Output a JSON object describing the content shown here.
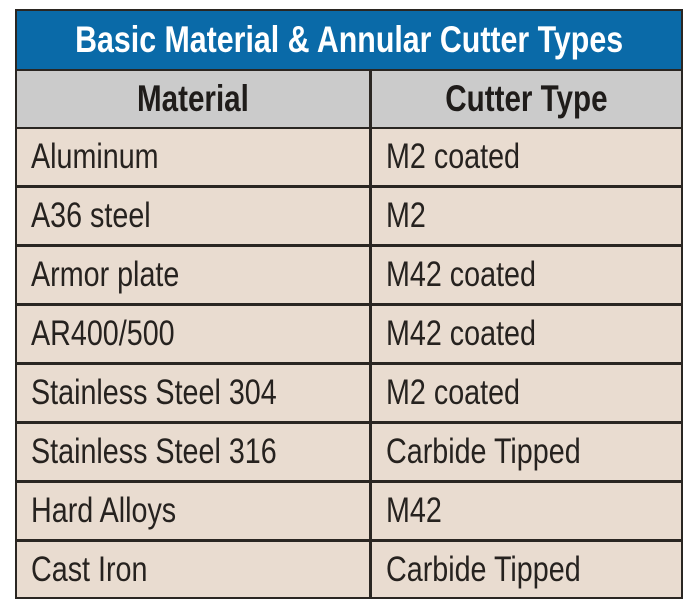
{
  "title": "Basic Material & Annular Cutter Types",
  "colors": {
    "title_bg": "#0a6aa8",
    "header_bg": "#cbcbcb",
    "cell_bg": "#e9dcd0",
    "border": "#2a2622"
  },
  "columns": [
    "Material",
    "Cutter Type"
  ],
  "rows": [
    {
      "material": "Aluminum",
      "cutter": "M2 coated"
    },
    {
      "material": "A36 steel",
      "cutter": "M2"
    },
    {
      "material": "Armor plate",
      "cutter": "M42 coated"
    },
    {
      "material": "AR400/500",
      "cutter": "M42 coated"
    },
    {
      "material": "Stainless Steel 304",
      "cutter": "M2 coated"
    },
    {
      "material": "Stainless Steel 316",
      "cutter": "Carbide Tipped"
    },
    {
      "material": "Hard Alloys",
      "cutter": "M42"
    },
    {
      "material": "Cast Iron",
      "cutter": "Carbide Tipped"
    }
  ]
}
